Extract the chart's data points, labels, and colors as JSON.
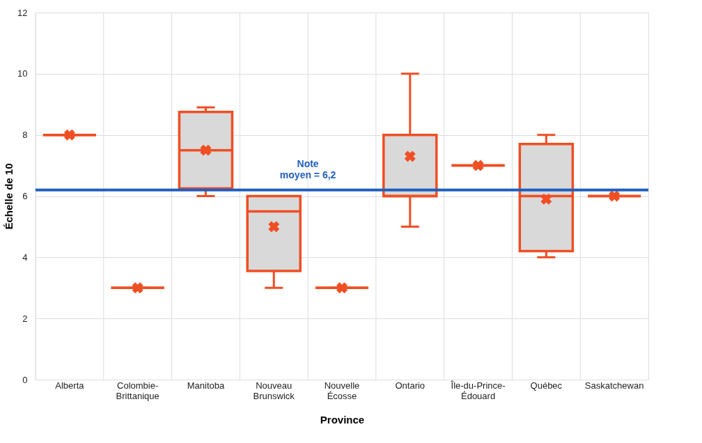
{
  "chart_data": {
    "type": "box",
    "xlabel": "Province",
    "ylabel": "Échelle de 10",
    "categories": [
      "Alberta",
      "Colombie-\nBrittanique",
      "Manitoba",
      "Nouveau\nBrunswick",
      "Nouvelle\nÉcosse",
      "Ontario",
      "Île-du-Prince-\nÉdouard",
      "Québec",
      "Saskatchewan"
    ],
    "color": "#f04e23",
    "marker": "cross",
    "boxes": [
      {
        "low": 8,
        "q1": 8,
        "median": 8,
        "q3": 8,
        "high": 8,
        "mean": 8
      },
      {
        "low": 3,
        "q1": 3,
        "median": 3,
        "q3": 3,
        "high": 3,
        "mean": 3
      },
      {
        "low": 6.0,
        "q1": 6.25,
        "median": 7.5,
        "q3": 8.75,
        "high": 8.9,
        "mean": 7.5
      },
      {
        "low": 3.0,
        "q1": 3.55,
        "median": 5.5,
        "q3": 6.0,
        "high": 6.0,
        "mean": 5.0
      },
      {
        "low": 3,
        "q1": 3,
        "median": 3,
        "q3": 3,
        "high": 3,
        "mean": 3
      },
      {
        "low": 5.0,
        "q1": 6.0,
        "median": 6.0,
        "q3": 8.0,
        "high": 10.0,
        "mean": 7.3
      },
      {
        "low": 7,
        "q1": 7,
        "median": 7,
        "q3": 7,
        "high": 7,
        "mean": 7
      },
      {
        "low": 4.0,
        "q1": 4.2,
        "median": 6.0,
        "q3": 7.7,
        "high": 8.0,
        "mean": 5.9
      },
      {
        "low": 6,
        "q1": 6,
        "median": 6,
        "q3": 6,
        "high": 6,
        "mean": 6
      }
    ],
    "ylim": [
      0,
      12
    ],
    "yticks": [
      0,
      2,
      4,
      6,
      8,
      10,
      12
    ],
    "grid": true,
    "ref_lines": [
      {
        "axis": "y",
        "value": 6.2,
        "label": "Note\nmoyen = 6,2",
        "color": "#1f5fbf"
      }
    ]
  }
}
